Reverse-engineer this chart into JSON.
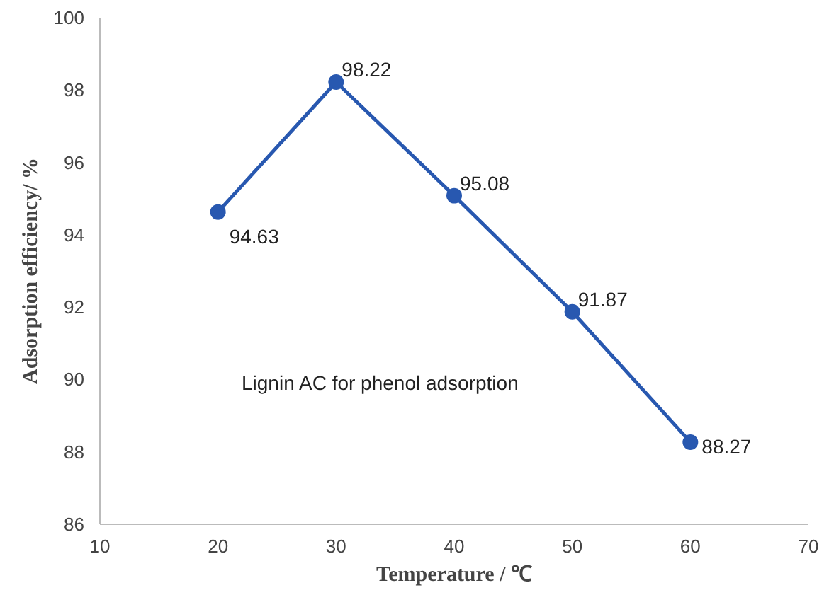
{
  "chart_data": {
    "type": "line",
    "xlabel": "Temperature / ℃",
    "ylabel": "Adsorption efficiency/ %",
    "x": [
      20,
      30,
      40,
      50,
      60
    ],
    "series": [
      {
        "color": "#2858b0",
        "values": [
          94.63,
          98.22,
          95.08,
          91.87,
          88.27
        ]
      }
    ],
    "xlim": [
      10,
      70
    ],
    "xticks": [
      10,
      20,
      30,
      40,
      50,
      60,
      70
    ],
    "ylim": [
      86,
      100
    ],
    "yticks": [
      86,
      88,
      90,
      92,
      94,
      96,
      98,
      100
    ],
    "data_labels": true,
    "marker": "circle",
    "grid": false,
    "annotations": [
      "Lignin AC for phenol adsorption"
    ]
  }
}
